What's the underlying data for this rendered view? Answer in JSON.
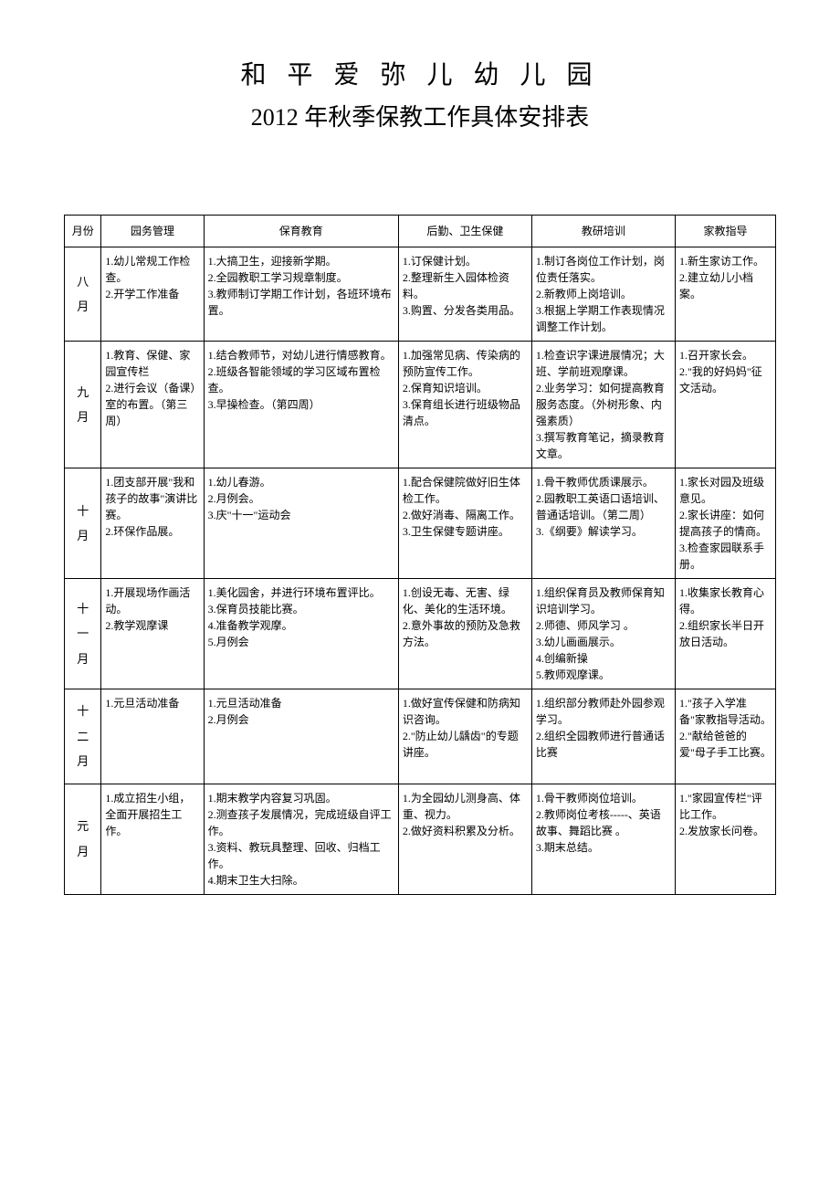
{
  "title_line1": "和 平 爱 弥 儿 幼 儿 园",
  "title_line2": "2012 年秋季保教工作具体安排表",
  "headers": {
    "month": "月份",
    "col1": "园务管理",
    "col2": "保育教育",
    "col3": "后勤、卫生保健",
    "col4": "教研培训",
    "col5": "家教指导"
  },
  "rows": [
    {
      "month_chars": [
        "八",
        "月"
      ],
      "c1": "1.幼儿常规工作检查。\n2.开学工作准备",
      "c2": "1.大搞卫生，迎接新学期。\n2.全园教职工学习规章制度。\n3.教师制订学期工作计划，各班环境布置。",
      "c3": "1.订保健计划。\n2.整理新生入园体检资料。\n3.购置、分发各类用品。",
      "c4": "1.制订各岗位工作计划，岗位责任落实。\n2.新教师上岗培训。\n3.根据上学期工作表现情况调整工作计划。",
      "c5": "1.新生家访工作。\n2.建立幼儿小档案。"
    },
    {
      "month_chars": [
        "九",
        "月"
      ],
      "c1": "1.教育、保健、家园宣传栏\n2.进行会议（备课）室的布置。（第三周）",
      "c2": "1.结合教师节，对幼儿进行情感教育。\n2.班级各智能领域的学习区域布置检查。\n3.早操检查。（第四周）",
      "c3": "1.加强常见病、传染病的预防宣传工作。\n2.保育知识培训。\n3.保育组长进行班级物品清点。",
      "c4": "1.检查识字课进展情况；大班、学前班观摩课。\n2.业务学习：如何提高教育服务态度。（外树形象、内强素质）\n3.撰写教育笔记，摘录教育文章。",
      "c5": "1.召开家长会。\n2.\"我的好妈妈\"征文活动。"
    },
    {
      "month_chars": [
        "十",
        "月"
      ],
      "c1": "1.团支部开展\"我和孩子的故事\"演讲比赛。\n2.环保作品展。",
      "c2": "1.幼儿春游。\n2.月例会。\n3.庆\"十一\"运动会",
      "c3": "1.配合保健院做好旧生体检工作。\n2.做好消毒、隔离工作。\n3.卫生保健专题讲座。",
      "c4": "1.骨干教师优质课展示。\n2.园教职工英语口语培训、普通话培训。（第二周）\n3.《纲要》解读学习。",
      "c5": "1.家长对园及班级意见。\n2.家长讲座：如何提高孩子的情商。\n3.检查家园联系手册。"
    },
    {
      "month_chars": [
        "十",
        "一",
        "月"
      ],
      "c1": "1.开展现场作画活动。\n2.教学观摩课",
      "c2": "1.美化园舍，并进行环境布置评比。\n3.保育员技能比赛。\n4.准备教学观摩。\n5.月例会",
      "c3": "1.创设无毒、无害、绿化、美化的生活环境。\n2.意外事故的预防及急救方法。",
      "c4": "1.组织保育员及教师保育知识培训学习。\n2.师德、师风学习 。\n3.幼儿画画展示。\n4.创编新操\n5.教师观摩课。",
      "c5": "1.收集家长教育心得。\n2.组织家长半日开放日活动。"
    },
    {
      "month_chars": [
        "十",
        "二",
        "月"
      ],
      "c1": "1.元旦活动准备",
      "c2": "1.元旦活动准备\n2.月例会",
      "c3": "1.做好宣传保健和防病知识咨询。\n2.\"防止幼儿龋齿\"的专题讲座。",
      "c4": "1.组织部分教师赴外园参观学习。\n2.组织全园教师进行普通话比赛",
      "c5": "1.\"孩子入学准备\"家教指导活动。\n2.\"献给爸爸的爱\"母子手工比赛。"
    },
    {
      "month_chars": [
        "元",
        "月"
      ],
      "c1": "1.成立招生小组，全面开展招生工作。",
      "c2": "1.期末教学内容复习巩固。\n2.测查孩子发展情况，完成班级自评工作。\n3.资料、教玩具整理、回收、归档工作。\n4.期末卫生大扫除。",
      "c3": "1.为全园幼儿测身高、体重、视力。\n2.做好资料积累及分析。",
      "c4": "1.骨干教师岗位培训。\n2.教师岗位考核-----、英语故事、舞蹈比赛 。\n3.期末总结。",
      "c5": "1.\"家园宣传栏\"评比工作。\n2.发放家长问卷。"
    }
  ]
}
